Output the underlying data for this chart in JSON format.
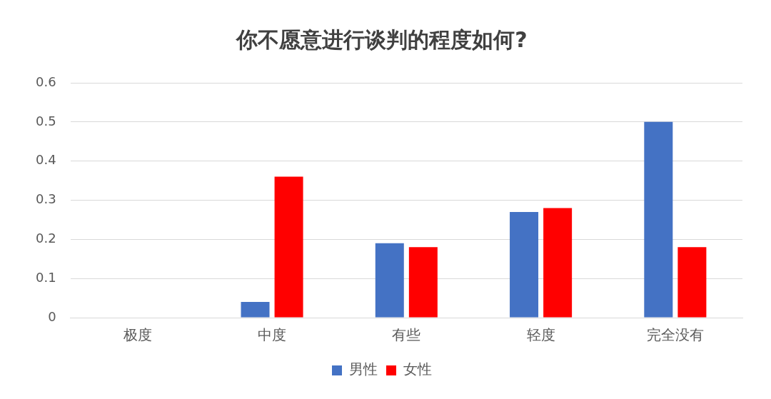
{
  "chart_data": {
    "type": "bar",
    "title": "你不愿意进行谈判的程度如何?",
    "categories": [
      "极度",
      "中度",
      "有些",
      "轻度",
      "完全没有"
    ],
    "series": [
      {
        "name": "男性",
        "color": "#4472c4",
        "values": [
          0,
          0.04,
          0.19,
          0.27,
          0.5
        ]
      },
      {
        "name": "女性",
        "color": "#ff0000",
        "values": [
          0,
          0.36,
          0.18,
          0.28,
          0.18
        ]
      }
    ],
    "ylim": [
      0,
      0.6
    ],
    "yticks": [
      0,
      0.1,
      0.2,
      0.3,
      0.4,
      0.5,
      0.6
    ],
    "grid": "y",
    "legend": "bottom"
  }
}
